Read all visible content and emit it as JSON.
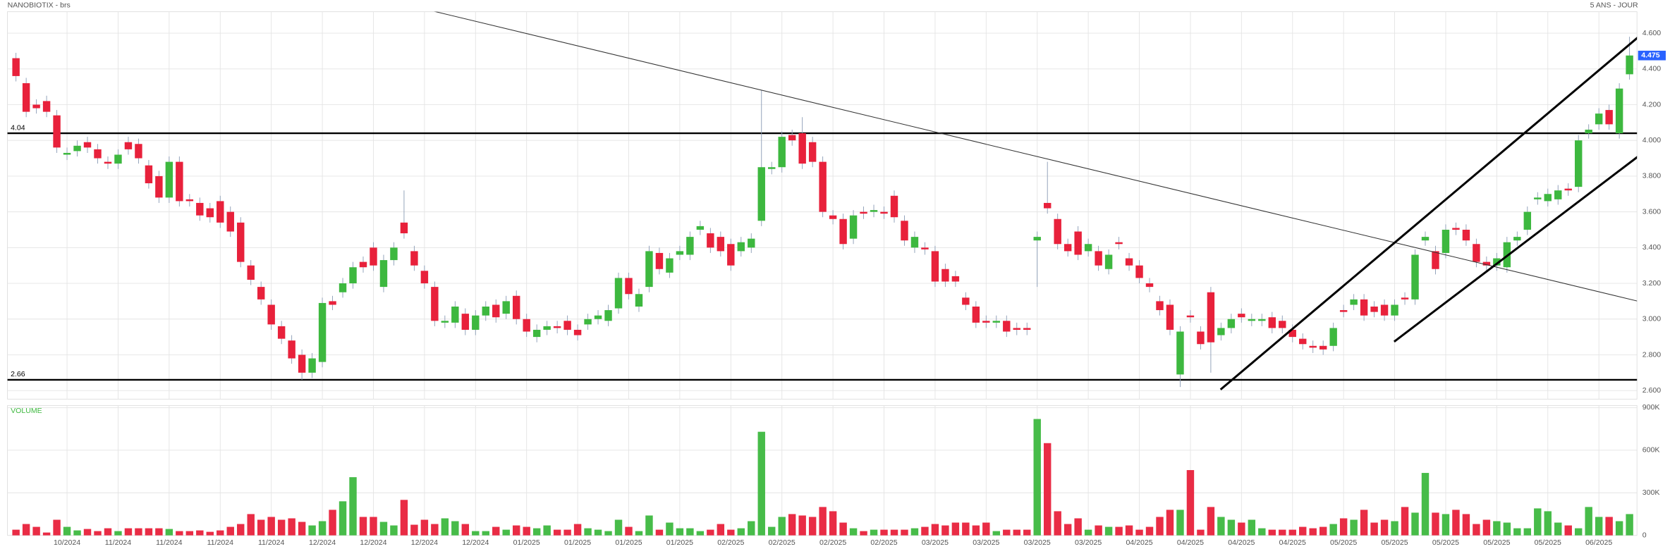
{
  "chart_data": {
    "type": "candlestick",
    "title": "NANOBIOTIX - brs",
    "subtitle": "5 ANS - JOUR",
    "categories": [
      null,
      null,
      null,
      null,
      null,
      "10/2024",
      null,
      null,
      null,
      null,
      "11/2024",
      null,
      null,
      null,
      null,
      "11/2024",
      null,
      null,
      null,
      null,
      "11/2024",
      null,
      null,
      null,
      null,
      "11/2024",
      null,
      null,
      null,
      null,
      "12/2024",
      null,
      null,
      null,
      null,
      "12/2024",
      null,
      null,
      null,
      null,
      "12/2024",
      null,
      null,
      null,
      null,
      "12/2024",
      null,
      null,
      null,
      null,
      "01/2025",
      null,
      null,
      null,
      null,
      "01/2025",
      null,
      null,
      null,
      null,
      "01/2025",
      null,
      null,
      null,
      null,
      "01/2025",
      null,
      null,
      null,
      null,
      "02/2025",
      null,
      null,
      null,
      null,
      "02/2025",
      null,
      null,
      null,
      null,
      "02/2025",
      null,
      null,
      null,
      null,
      "02/2025",
      null,
      null,
      null,
      null,
      "03/2025",
      null,
      null,
      null,
      null,
      "03/2025",
      null,
      null,
      null,
      null,
      "03/2025",
      null,
      null,
      null,
      null,
      "03/2025",
      null,
      null,
      null,
      null,
      "04/2025",
      null,
      null,
      null,
      null,
      "04/2025",
      null,
      null,
      null,
      null,
      "04/2025",
      null,
      null,
      null,
      null,
      "04/2025",
      null,
      null,
      null,
      null,
      "05/2025",
      null,
      null,
      null,
      null,
      "05/2025",
      null,
      null,
      null,
      null,
      "05/2025",
      null,
      null,
      null,
      null,
      "05/2025",
      null,
      null,
      null,
      null,
      "05/2025",
      null,
      null,
      null,
      null,
      "06/2025",
      null,
      null,
      null
    ],
    "open": [
      4.46,
      4.32,
      4.2,
      4.22,
      4.14,
      3.92,
      3.94,
      3.99,
      3.95,
      3.88,
      3.87,
      3.99,
      3.98,
      3.86,
      3.8,
      3.68,
      3.88,
      3.67,
      3.65,
      3.62,
      3.66,
      3.6,
      3.54,
      3.3,
      3.18,
      3.08,
      2.96,
      2.88,
      2.8,
      2.7,
      2.76,
      3.1,
      3.15,
      3.2,
      3.32,
      3.4,
      3.18,
      3.33,
      3.54,
      3.38,
      3.27,
      3.18,
      2.98,
      2.98,
      3.03,
      2.94,
      3.02,
      3.08,
      3.03,
      3.13,
      3.0,
      2.9,
      2.94,
      2.96,
      2.99,
      2.94,
      2.97,
      3.0,
      2.99,
      3.06,
      3.23,
      3.07,
      3.18,
      3.37,
      3.26,
      3.36,
      3.36,
      3.5,
      3.48,
      3.46,
      3.42,
      3.38,
      3.4,
      3.55,
      3.84,
      3.85,
      4.03,
      4.04,
      3.99,
      3.88,
      3.58,
      3.56,
      3.45,
      3.6,
      3.6,
      3.6,
      3.69,
      3.55,
      3.4,
      3.4,
      3.38,
      3.28,
      3.24,
      3.12,
      3.07,
      2.99,
      2.98,
      2.99,
      2.95,
      2.95,
      3.44,
      3.65,
      3.56,
      3.42,
      3.49,
      3.38,
      3.38,
      3.28,
      3.43,
      3.34,
      3.3,
      3.2,
      3.1,
      3.08,
      2.69,
      3.02,
      2.93,
      3.15,
      2.91,
      2.95,
      3.03,
      2.99,
      2.99,
      3.01,
      2.99,
      2.94,
      2.89,
      2.85,
      2.85,
      2.85,
      3.05,
      3.08,
      3.11,
      3.07,
      3.08,
      3.02,
      3.12,
      3.11,
      3.44,
      3.38,
      3.37,
      3.51,
      3.5,
      3.42,
      3.32,
      3.3,
      3.29,
      3.44,
      3.5,
      3.67,
      3.66,
      3.67,
      3.73,
      3.74,
      4.04,
      4.09,
      4.17,
      4.04,
      4.37
    ],
    "high": [
      4.49,
      4.35,
      4.23,
      4.25,
      4.17,
      3.96,
      4.0,
      4.02,
      3.98,
      3.91,
      3.95,
      4.02,
      4.01,
      3.89,
      3.83,
      3.91,
      3.91,
      3.7,
      3.68,
      3.65,
      3.69,
      3.63,
      3.57,
      3.33,
      3.21,
      3.11,
      2.99,
      2.91,
      2.83,
      2.81,
      3.12,
      3.13,
      3.23,
      3.32,
      3.35,
      3.43,
      3.36,
      3.43,
      3.72,
      3.41,
      3.3,
      3.21,
      3.02,
      3.1,
      3.06,
      3.05,
      3.1,
      3.11,
      3.13,
      3.16,
      3.03,
      2.97,
      2.99,
      2.99,
      3.02,
      2.97,
      3.03,
      3.05,
      3.08,
      3.26,
      3.26,
      3.17,
      3.41,
      3.4,
      3.37,
      3.41,
      3.49,
      3.55,
      3.51,
      3.49,
      3.45,
      3.46,
      3.48,
      4.28,
      3.88,
      4.05,
      4.06,
      4.13,
      4.02,
      3.91,
      3.61,
      3.59,
      3.61,
      3.63,
      3.64,
      3.63,
      3.72,
      3.58,
      3.49,
      3.43,
      3.41,
      3.31,
      3.27,
      3.15,
      3.1,
      3.02,
      3.02,
      3.02,
      2.98,
      2.98,
      3.49,
      3.88,
      3.59,
      3.45,
      3.52,
      3.45,
      3.41,
      3.39,
      3.46,
      3.37,
      3.33,
      3.23,
      3.13,
      3.11,
      2.96,
      3.05,
      2.96,
      3.18,
      2.98,
      3.03,
      3.06,
      3.03,
      3.03,
      3.04,
      3.02,
      2.97,
      2.92,
      2.88,
      2.88,
      2.98,
      3.08,
      3.14,
      3.14,
      3.1,
      3.11,
      3.11,
      3.15,
      3.39,
      3.49,
      3.41,
      3.53,
      3.54,
      3.53,
      3.45,
      3.35,
      3.37,
      3.46,
      3.49,
      3.63,
      3.71,
      3.73,
      3.75,
      3.76,
      4.03,
      4.09,
      4.18,
      4.2,
      4.32,
      4.58
    ],
    "low": [
      4.33,
      4.13,
      4.15,
      4.13,
      3.93,
      3.89,
      3.91,
      3.93,
      3.87,
      3.84,
      3.84,
      3.92,
      3.87,
      3.73,
      3.65,
      3.65,
      3.63,
      3.63,
      3.55,
      3.54,
      3.51,
      3.46,
      3.29,
      3.19,
      3.08,
      2.94,
      2.86,
      2.75,
      2.66,
      2.67,
      2.73,
      3.05,
      3.12,
      3.17,
      3.26,
      3.27,
      3.15,
      3.3,
      3.45,
      3.27,
      3.17,
      2.96,
      2.95,
      2.95,
      2.91,
      2.91,
      2.99,
      2.98,
      3.0,
      2.97,
      2.9,
      2.87,
      2.91,
      2.92,
      2.91,
      2.88,
      2.94,
      2.97,
      2.96,
      3.03,
      3.11,
      3.04,
      3.15,
      3.25,
      3.23,
      3.33,
      3.33,
      3.47,
      3.37,
      3.35,
      3.27,
      3.35,
      3.37,
      3.52,
      3.81,
      3.82,
      3.97,
      3.84,
      3.85,
      3.57,
      3.53,
      3.39,
      3.42,
      3.56,
      3.57,
      3.56,
      3.54,
      3.41,
      3.37,
      3.36,
      3.18,
      3.18,
      3.18,
      3.05,
      2.95,
      2.95,
      2.95,
      2.9,
      2.91,
      2.91,
      3.18,
      3.59,
      3.39,
      3.35,
      3.33,
      3.35,
      3.27,
      3.25,
      3.39,
      3.27,
      3.2,
      3.15,
      3.02,
      2.91,
      2.62,
      2.98,
      2.83,
      2.7,
      2.88,
      2.92,
      2.98,
      2.96,
      2.96,
      2.92,
      2.92,
      2.87,
      2.83,
      2.81,
      2.8,
      2.82,
      3.01,
      3.05,
      2.99,
      3.01,
      2.99,
      2.99,
      3.08,
      3.08,
      3.41,
      3.25,
      3.34,
      3.47,
      3.41,
      3.29,
      3.27,
      3.27,
      3.26,
      3.41,
      3.47,
      3.64,
      3.63,
      3.64,
      3.69,
      3.71,
      4.01,
      4.06,
      4.06,
      4.01,
      4.34
    ],
    "close": [
      4.36,
      4.16,
      4.18,
      4.16,
      3.96,
      3.93,
      3.97,
      3.96,
      3.9,
      3.87,
      3.92,
      3.95,
      3.9,
      3.76,
      3.68,
      3.88,
      3.66,
      3.66,
      3.58,
      3.57,
      3.54,
      3.49,
      3.32,
      3.22,
      3.11,
      2.97,
      2.89,
      2.78,
      2.7,
      2.78,
      3.09,
      3.08,
      3.2,
      3.29,
      3.29,
      3.3,
      3.33,
      3.4,
      3.48,
      3.3,
      3.2,
      2.99,
      2.99,
      3.07,
      2.94,
      3.02,
      3.07,
      3.01,
      3.1,
      3.0,
      2.93,
      2.94,
      2.96,
      2.95,
      2.94,
      2.91,
      3.0,
      3.02,
      3.05,
      3.23,
      3.14,
      3.14,
      3.38,
      3.28,
      3.34,
      3.38,
      3.46,
      3.52,
      3.4,
      3.38,
      3.3,
      3.43,
      3.45,
      3.85,
      3.85,
      4.02,
      4.0,
      3.87,
      3.88,
      3.6,
      3.56,
      3.42,
      3.58,
      3.59,
      3.61,
      3.59,
      3.57,
      3.44,
      3.46,
      3.39,
      3.21,
      3.21,
      3.21,
      3.08,
      2.98,
      2.98,
      2.99,
      2.93,
      2.94,
      2.94,
      3.46,
      3.62,
      3.42,
      3.38,
      3.36,
      3.42,
      3.3,
      3.36,
      3.42,
      3.3,
      3.23,
      3.18,
      3.05,
      2.94,
      2.93,
      3.01,
      2.86,
      2.87,
      2.95,
      3.0,
      3.01,
      3.0,
      3.0,
      2.95,
      2.95,
      2.9,
      2.86,
      2.84,
      2.83,
      2.95,
      3.04,
      3.11,
      3.02,
      3.04,
      3.02,
      3.08,
      3.11,
      3.36,
      3.46,
      3.28,
      3.5,
      3.5,
      3.44,
      3.32,
      3.3,
      3.34,
      3.43,
      3.46,
      3.6,
      3.68,
      3.7,
      3.72,
      3.72,
      4.0,
      4.06,
      4.15,
      4.09,
      4.29,
      4.475
    ],
    "up_color": "#3db83f",
    "down_color": "#e8213b",
    "ylim": [
      2.552,
      4.72
    ],
    "yticks": [
      {
        "value": 2.6,
        "label": "2.600"
      },
      {
        "value": 2.8,
        "label": "2.800"
      },
      {
        "value": 3.0,
        "label": "3.000"
      },
      {
        "value": 3.2,
        "label": "3.200"
      },
      {
        "value": 3.4,
        "label": "3.400"
      },
      {
        "value": 3.6,
        "label": "3.600"
      },
      {
        "value": 3.8,
        "label": "3.800"
      },
      {
        "value": 4.0,
        "label": "4.000"
      },
      {
        "value": 4.2,
        "label": "4.200"
      },
      {
        "value": 4.4,
        "label": "4.400"
      },
      {
        "value": 4.6,
        "label": "4.600"
      }
    ],
    "hlines": [
      4.04,
      2.66
    ],
    "grid": true,
    "volume": {
      "label": "VOLUME",
      "ylim": [
        0,
        915000
      ],
      "yticks": [
        0,
        {
          "value": 300000,
          "label": "300K"
        },
        {
          "value": 600000,
          "label": "600K"
        },
        {
          "value": 900000,
          "label": "900K"
        }
      ],
      "values": [
        40000,
        80000,
        60000,
        20000,
        110000,
        60000,
        35000,
        45000,
        30000,
        50000,
        30000,
        50000,
        50000,
        50000,
        50000,
        45000,
        30000,
        30000,
        35000,
        25000,
        35000,
        60000,
        80000,
        150000,
        110000,
        130000,
        110000,
        120000,
        95000,
        70000,
        100000,
        180000,
        240000,
        410000,
        130000,
        130000,
        95000,
        70000,
        250000,
        75000,
        110000,
        80000,
        120000,
        100000,
        80000,
        30000,
        30000,
        60000,
        40000,
        70000,
        60000,
        50000,
        70000,
        40000,
        40000,
        80000,
        50000,
        40000,
        30000,
        110000,
        60000,
        30000,
        140000,
        40000,
        90000,
        50000,
        50000,
        30000,
        40000,
        80000,
        40000,
        50000,
        100000,
        730000,
        60000,
        130000,
        150000,
        140000,
        130000,
        200000,
        170000,
        90000,
        50000,
        30000,
        40000,
        40000,
        40000,
        40000,
        50000,
        60000,
        80000,
        70000,
        90000,
        90000,
        70000,
        90000,
        30000,
        40000,
        40000,
        40000,
        820000,
        650000,
        170000,
        80000,
        120000,
        40000,
        70000,
        60000,
        60000,
        70000,
        40000,
        60000,
        130000,
        180000,
        180000,
        460000,
        40000,
        200000,
        130000,
        110000,
        90000,
        110000,
        50000,
        40000,
        40000,
        40000,
        60000,
        50000,
        60000,
        80000,
        120000,
        110000,
        180000,
        90000,
        110000,
        100000,
        200000,
        160000,
        440000,
        160000,
        150000,
        180000,
        150000,
        80000,
        110000,
        100000,
        90000,
        50000,
        50000,
        190000,
        170000,
        90000,
        70000,
        50000,
        200000,
        130000,
        130000,
        100000,
        150000
      ]
    }
  }
}
